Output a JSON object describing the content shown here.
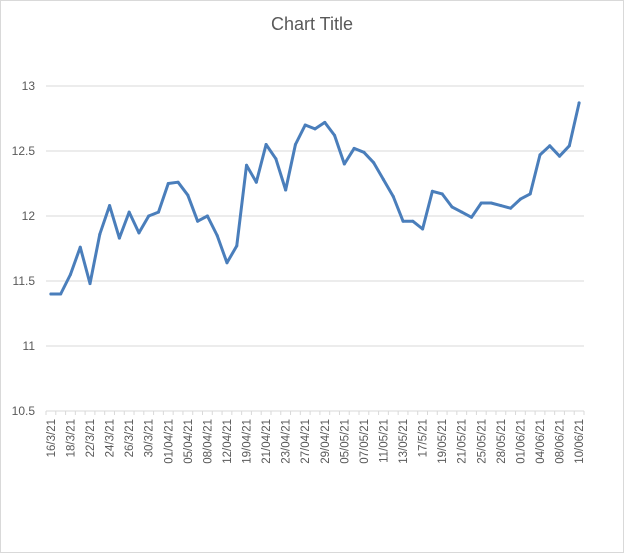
{
  "chart_data": {
    "type": "line",
    "title": "Chart Title",
    "xlabel": "",
    "ylabel": "",
    "ylim": [
      10.5,
      13
    ],
    "yticks": [
      "10.5",
      "11",
      "11.5",
      "12",
      "12.5",
      "13"
    ],
    "grid": true,
    "legend": "none",
    "line_color": "#4a7ebb",
    "x": [
      "16/3/21",
      "17/3/21",
      "18/3/21",
      "19/3/21",
      "22/3/21",
      "23/3/21",
      "24/3/21",
      "25/3/21",
      "26/3/21",
      "29/3/21",
      "30/3/21",
      "31/3/21",
      "01/04/21",
      "02/04/21",
      "05/04/21",
      "06/04/21",
      "08/04/21",
      "09/04/21",
      "12/04/21",
      "13/04/21",
      "19/04/21",
      "20/04/21",
      "21/04/21",
      "22/04/21",
      "23/04/21",
      "26/04/21",
      "27/04/21",
      "28/04/21",
      "29/04/21",
      "30/04/21",
      "05/05/21",
      "06/05/21",
      "07/05/21",
      "10/05/21",
      "11/05/21",
      "12/05/21",
      "13/05/21",
      "14/05/21",
      "17/5/21",
      "18/05/21",
      "19/05/21",
      "20/05/21",
      "21/05/21",
      "24/05/21",
      "25/05/21",
      "26/05/21",
      "28/05/21",
      "31/05/21",
      "01/06/21",
      "02/06/21",
      "04/06/21",
      "07/06/21",
      "08/06/21",
      "09/06/21",
      "10/06/21"
    ],
    "x_tick_labels": [
      "16/3/21",
      "18/3/21",
      "22/3/21",
      "24/3/21",
      "26/3/21",
      "30/3/21",
      "01/04/21",
      "05/04/21",
      "08/04/21",
      "12/04/21",
      "19/04/21",
      "21/04/21",
      "23/04/21",
      "27/04/21",
      "29/04/21",
      "05/05/21",
      "07/05/21",
      "11/05/21",
      "13/05/21",
      "17/5/21",
      "19/05/21",
      "21/05/21",
      "25/05/21",
      "28/05/21",
      "01/06/21",
      "04/06/21",
      "08/06/21",
      "10/06/21"
    ],
    "values": [
      11.4,
      11.4,
      11.55,
      11.76,
      11.48,
      11.86,
      12.08,
      11.83,
      12.03,
      11.87,
      12.0,
      12.03,
      12.25,
      12.26,
      12.16,
      11.96,
      12.0,
      11.85,
      11.64,
      11.77,
      12.39,
      12.26,
      12.55,
      12.44,
      12.2,
      12.55,
      12.7,
      12.67,
      12.72,
      12.62,
      12.4,
      12.52,
      12.49,
      12.41,
      12.28,
      12.15,
      11.96,
      11.96,
      11.9,
      12.19,
      12.17,
      12.07,
      12.03,
      11.99,
      12.1,
      12.1,
      12.08,
      12.06,
      12.13,
      12.17,
      12.47,
      12.54,
      12.46,
      12.54,
      12.87
    ]
  }
}
